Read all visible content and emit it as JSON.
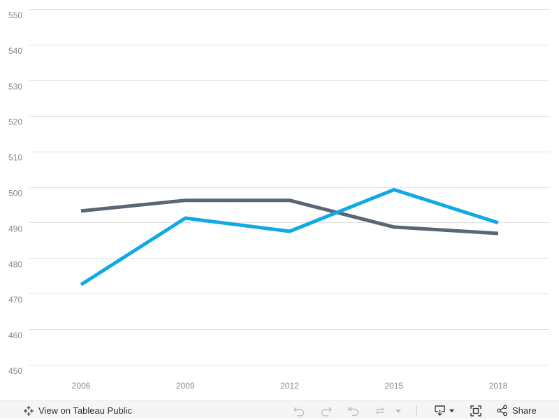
{
  "chart_data": {
    "type": "line",
    "categories": [
      "2006",
      "2009",
      "2012",
      "2015",
      "2018"
    ],
    "x_tick_labels": [
      "2006",
      "2009",
      "2012",
      "2015",
      "2018"
    ],
    "y_tick_labels": [
      "450",
      "460",
      "470",
      "480",
      "490",
      "500",
      "510",
      "520",
      "530",
      "540",
      "550"
    ],
    "ylim": [
      448,
      552
    ],
    "grid": true,
    "series": [
      {
        "color": "#5a6674",
        "values": [
          495,
          498,
          498,
          490.5,
          488.7
        ]
      },
      {
        "color": "#0fa9e6",
        "values": [
          474.3,
          493,
          489.3,
          501,
          491.7
        ]
      }
    ]
  },
  "toolbar": {
    "view_label": "View on Tableau Public",
    "share_label": "Share",
    "icons": [
      "tableau-logo-icon",
      "undo-icon",
      "redo-icon",
      "revert-icon",
      "refresh-icon",
      "download-icon",
      "fullscreen-icon",
      "share-icon"
    ]
  }
}
